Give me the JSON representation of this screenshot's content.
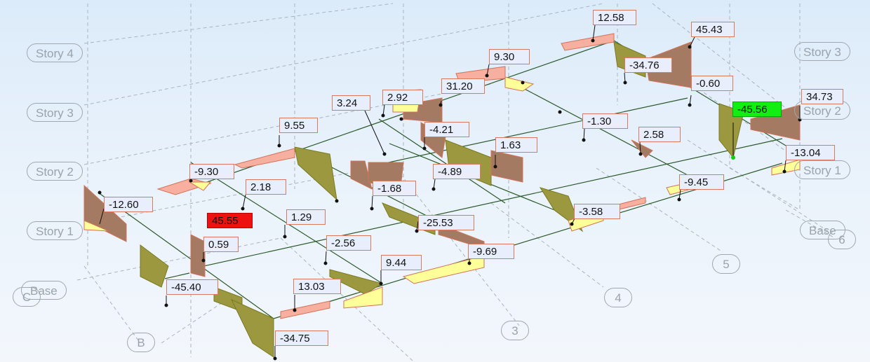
{
  "story_levels": {
    "left": [
      "Story 4",
      "Story 3",
      "Story 2",
      "Story 1",
      "Base"
    ],
    "right": [
      "Story 3",
      "Story 2",
      "Story 1",
      "Base"
    ]
  },
  "grid_axes": [
    "C",
    "B",
    "3",
    "4",
    "5",
    "6"
  ],
  "colors": {
    "positive_fill": "#ffff99",
    "negative_fill": "#a47a62",
    "salmon_fill": "#f7b0a0",
    "beam": "#2c5a2c",
    "label_background": "#e8eefc",
    "label_border": "#d87a60",
    "max_highlight": "#ee1111",
    "min_highlight": "#11ee11"
  },
  "moment_labels": [
    {
      "text": "12.58"
    },
    {
      "text": "45.43"
    },
    {
      "text": "9.30"
    },
    {
      "text": "-34.76"
    },
    {
      "text": "-0.60"
    },
    {
      "text": "34.73"
    },
    {
      "text": "-45.56",
      "highlight": "min"
    },
    {
      "text": "3.24"
    },
    {
      "text": "2.92"
    },
    {
      "text": "31.20"
    },
    {
      "text": "-4.21"
    },
    {
      "text": "-1.30"
    },
    {
      "text": "2.58"
    },
    {
      "text": "-13.04"
    },
    {
      "text": "9.55"
    },
    {
      "text": "1.63"
    },
    {
      "text": "-9.30"
    },
    {
      "text": "-4.89"
    },
    {
      "text": "-9.45"
    },
    {
      "text": "2.18"
    },
    {
      "text": "-1.68"
    },
    {
      "text": "-12.60"
    },
    {
      "text": "45.55",
      "highlight": "max"
    },
    {
      "text": "1.29"
    },
    {
      "text": "-3.58"
    },
    {
      "text": "-25.53"
    },
    {
      "text": "0.59"
    },
    {
      "text": "-2.56"
    },
    {
      "text": "-9.69"
    },
    {
      "text": "9.44"
    },
    {
      "text": "-45.40"
    },
    {
      "text": "13.03"
    },
    {
      "text": "-34.75"
    }
  ]
}
